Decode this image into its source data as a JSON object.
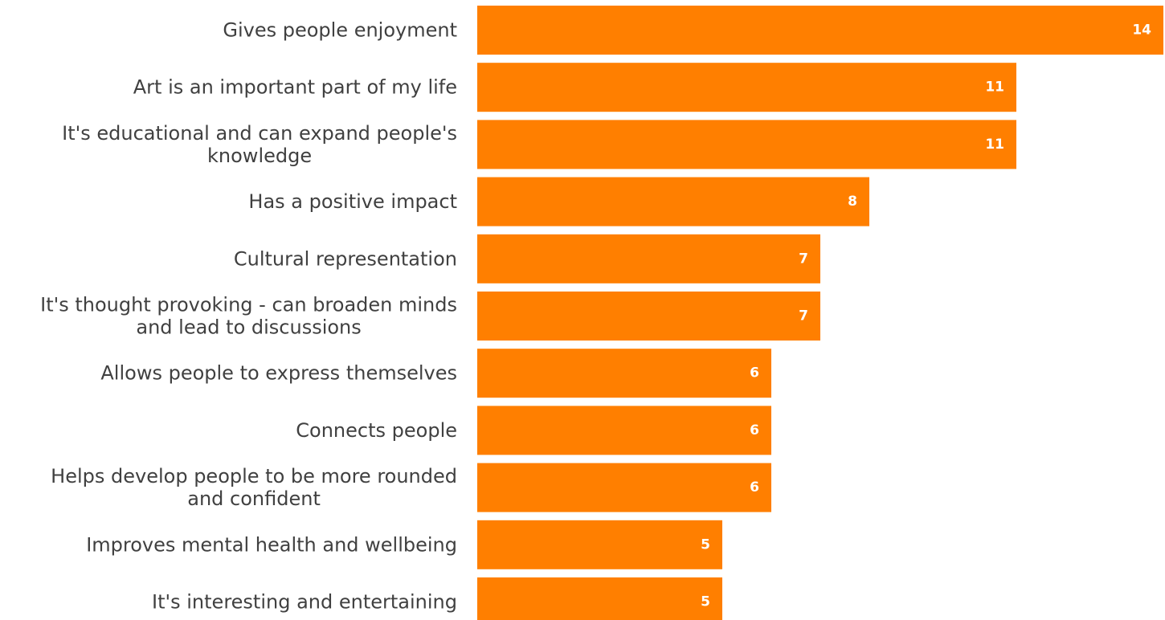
{
  "colors": {
    "bar": "#FF7F00",
    "label_text": "#404040",
    "value_text": "#FFFFFF"
  },
  "chart_data": {
    "type": "bar",
    "orientation": "horizontal",
    "title": "",
    "xlabel": "",
    "ylabel": "",
    "grid": false,
    "legend": "none",
    "xlim": [
      0,
      14
    ],
    "categories": [
      [
        "Gives people enjoyment"
      ],
      [
        "Art is an important part of my life"
      ],
      [
        "It's educational and can expand people's",
        "knowledge"
      ],
      [
        "Has a positive impact"
      ],
      [
        "Cultural representation"
      ],
      [
        "It's thought provoking - can broaden minds",
        "and lead to discussions"
      ],
      [
        "Allows people to express themselves"
      ],
      [
        "Connects people"
      ],
      [
        "Helps develop people to be more rounded",
        "and confident"
      ],
      [
        "Improves mental health and wellbeing"
      ],
      [
        "It's interesting and entertaining"
      ]
    ],
    "values": [
      14,
      11,
      11,
      8,
      7,
      7,
      6,
      6,
      6,
      5,
      5
    ]
  }
}
